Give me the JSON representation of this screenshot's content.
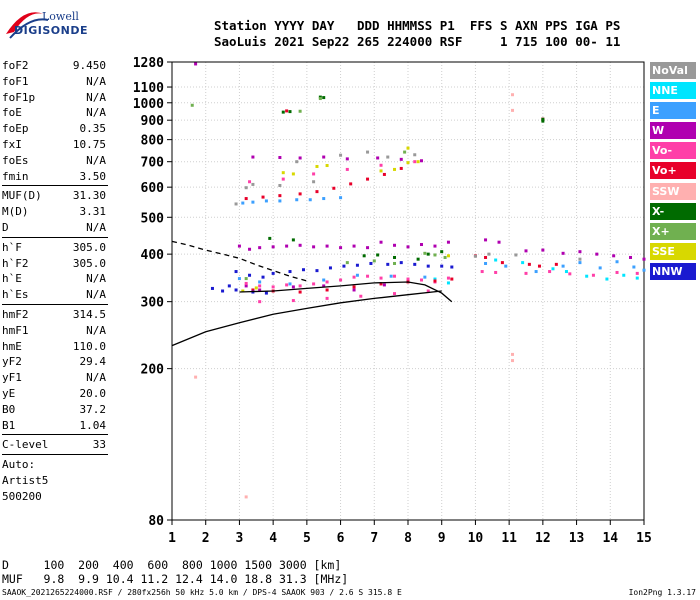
{
  "logo": {
    "line1": "Lowell",
    "line2": "DIGISONDE"
  },
  "header": {
    "line1": "Station YYYY DAY   DDD HHMMSS P1  FFS S AXN PPS IGA PS",
    "line2": "SaoLuis 2021 Sep22 265 224000 RSF     1 715 100 00- 11"
  },
  "params_groups": [
    [
      [
        "foF2",
        "9.450"
      ],
      [
        "foF1",
        "N/A"
      ],
      [
        "foF1p",
        "N/A"
      ],
      [
        "foE",
        "N/A"
      ],
      [
        "foEp",
        "0.35"
      ],
      [
        "fxI",
        "10.75"
      ],
      [
        "foEs",
        "N/A"
      ],
      [
        "fmin",
        "3.50"
      ]
    ],
    [
      [
        "MUF(D)",
        "31.30"
      ],
      [
        "M(D)",
        "3.31"
      ],
      [
        "D",
        "N/A"
      ]
    ],
    [
      [
        "h`F",
        "305.0"
      ],
      [
        "h`F2",
        "305.0"
      ],
      [
        "h`E",
        "N/A"
      ],
      [
        "h`Es",
        "N/A"
      ]
    ],
    [
      [
        "hmF2",
        "314.5"
      ],
      [
        "hmF1",
        "N/A"
      ],
      [
        "hmE",
        "110.0"
      ],
      [
        "yF2",
        "29.4"
      ],
      [
        "yF1",
        "N/A"
      ],
      [
        "yE",
        "20.0"
      ],
      [
        "B0",
        "37.2"
      ],
      [
        "B1",
        "1.04"
      ]
    ],
    [
      [
        "C-level",
        "33"
      ]
    ]
  ],
  "autoscale": {
    "line1": "Auto:",
    "line2": "Artist5",
    "line3": "500200"
  },
  "legend": [
    {
      "label": "NoVal",
      "bg": "#999999",
      "fg": "#ffffff"
    },
    {
      "label": "NNE",
      "bg": "#00e5ff",
      "fg": "#ffffff"
    },
    {
      "label": "E",
      "bg": "#3ca0ff",
      "fg": "#ffffff"
    },
    {
      "label": "W",
      "bg": "#b000b0",
      "fg": "#ffffff"
    },
    {
      "label": "Vo-",
      "bg": "#ff3fa8",
      "fg": "#ffffff"
    },
    {
      "label": "Vo+",
      "bg": "#e8002a",
      "fg": "#ffffff"
    },
    {
      "label": "SSW",
      "bg": "#ffb0b0",
      "fg": "#ffffff"
    },
    {
      "label": "X-",
      "bg": "#006b00",
      "fg": "#ffffff"
    },
    {
      "label": "X+",
      "bg": "#70b050",
      "fg": "#ffffff"
    },
    {
      "label": "SSE",
      "bg": "#d8d800",
      "fg": "#ffffff"
    },
    {
      "label": "NNW",
      "bg": "#1a1ad0",
      "fg": "#ffffff"
    }
  ],
  "bottom": {
    "line1": "D     100  200  400  600  800 1000 1500 3000 [km]",
    "line2": "MUF   9.8  9.9 10.4 11.2 12.4 14.0 18.8 31.3 [MHz]"
  },
  "footer": {
    "left": "SAAOK_2021265224000.RSF / 280fx256h 50 kHz 5.0 km / DPS-4 SAAOK 903 / 2.6 S 315.8 E",
    "right": "Ion2Png 1.3.17"
  },
  "chart_data": {
    "type": "scatter",
    "title": "",
    "xlabel": "",
    "ylabel": "",
    "xlim": [
      1,
      15
    ],
    "ylim": [
      80,
      1280
    ],
    "y_scale": "log",
    "x_ticks": [
      1,
      2,
      3,
      4,
      5,
      6,
      7,
      8,
      9,
      10,
      11,
      12,
      13,
      14,
      15
    ],
    "y_ticks": [
      80,
      200,
      300,
      400,
      500,
      600,
      700,
      800,
      900,
      1000,
      1100,
      1280
    ],
    "series": [
      {
        "name": "E",
        "color": "#3ca0ff",
        "points": [
          [
            3.1,
            545
          ],
          [
            3.4,
            548
          ],
          [
            3.8,
            552
          ],
          [
            4.2,
            552
          ],
          [
            4.7,
            556
          ],
          [
            5.1,
            556
          ],
          [
            5.5,
            560
          ],
          [
            6.0,
            563
          ],
          [
            3.0,
            345
          ],
          [
            3.6,
            338
          ],
          [
            4.5,
            334
          ],
          [
            5.5,
            342
          ],
          [
            6.5,
            352
          ],
          [
            7.5,
            350
          ],
          [
            8.5,
            348
          ],
          [
            10.3,
            378
          ],
          [
            10.9,
            372
          ],
          [
            11.8,
            360
          ],
          [
            12.6,
            372
          ],
          [
            13.1,
            380
          ],
          [
            13.7,
            368
          ],
          [
            14.2,
            382
          ],
          [
            14.7,
            370
          ],
          [
            15.0,
            363
          ]
        ]
      },
      {
        "name": "NNE",
        "color": "#00e5ff",
        "points": [
          [
            12.3,
            366
          ],
          [
            12.7,
            360
          ],
          [
            13.3,
            350
          ],
          [
            13.9,
            344
          ],
          [
            14.4,
            352
          ],
          [
            14.8,
            346
          ],
          [
            10.6,
            386
          ],
          [
            11.4,
            380
          ],
          [
            9.2,
            336
          ],
          [
            8.8,
            344
          ]
        ]
      },
      {
        "name": "W",
        "color": "#b000b0",
        "points": [
          [
            3.0,
            420
          ],
          [
            3.3,
            412
          ],
          [
            3.6,
            416
          ],
          [
            4.0,
            418
          ],
          [
            4.4,
            420
          ],
          [
            4.8,
            422
          ],
          [
            5.2,
            418
          ],
          [
            5.6,
            420
          ],
          [
            6.0,
            416
          ],
          [
            6.4,
            420
          ],
          [
            6.8,
            416
          ],
          [
            7.2,
            430
          ],
          [
            7.6,
            422
          ],
          [
            8.0,
            418
          ],
          [
            8.4,
            424
          ],
          [
            8.8,
            420
          ],
          [
            9.2,
            430
          ],
          [
            3.4,
            720
          ],
          [
            4.2,
            718
          ],
          [
            4.8,
            716
          ],
          [
            5.5,
            720
          ],
          [
            6.2,
            712
          ],
          [
            7.1,
            716
          ],
          [
            7.8,
            710
          ],
          [
            8.4,
            704
          ],
          [
            10.3,
            436
          ],
          [
            10.7,
            430
          ],
          [
            11.5,
            408
          ],
          [
            12.0,
            410
          ],
          [
            12.6,
            402
          ],
          [
            13.1,
            406
          ],
          [
            13.6,
            400
          ],
          [
            14.1,
            396
          ],
          [
            14.6,
            392
          ],
          [
            15.0,
            388
          ],
          [
            1.7,
            1265
          ],
          [
            3.2,
            330
          ],
          [
            3.6,
            322
          ],
          [
            4.6,
            328
          ],
          [
            5.5,
            330
          ],
          [
            6.4,
            322
          ],
          [
            7.3,
            332
          ]
        ]
      },
      {
        "name": "Vo-",
        "color": "#ff3fa8",
        "points": [
          [
            3.2,
            335
          ],
          [
            3.6,
            330
          ],
          [
            4.0,
            328
          ],
          [
            4.4,
            332
          ],
          [
            4.8,
            330
          ],
          [
            5.2,
            334
          ],
          [
            5.6,
            338
          ],
          [
            6.0,
            342
          ],
          [
            6.4,
            348
          ],
          [
            6.8,
            350
          ],
          [
            7.2,
            346
          ],
          [
            7.6,
            350
          ],
          [
            8.0,
            344
          ],
          [
            8.4,
            342
          ],
          [
            8.8,
            338
          ],
          [
            9.2,
            346
          ],
          [
            10.2,
            360
          ],
          [
            10.6,
            358
          ],
          [
            11.5,
            356
          ],
          [
            12.2,
            360
          ],
          [
            12.8,
            355
          ],
          [
            13.5,
            352
          ],
          [
            14.2,
            358
          ],
          [
            14.8,
            356
          ],
          [
            3.6,
            300
          ],
          [
            4.6,
            302
          ],
          [
            5.6,
            306
          ],
          [
            6.6,
            310
          ],
          [
            7.6,
            315
          ],
          [
            8.6,
            320
          ],
          [
            3.3,
            620
          ],
          [
            4.3,
            630
          ],
          [
            5.2,
            650
          ],
          [
            6.2,
            668
          ],
          [
            7.2,
            685
          ],
          [
            8.2,
            700
          ]
        ]
      },
      {
        "name": "Vo+",
        "color": "#e8002a",
        "points": [
          [
            3.2,
            560
          ],
          [
            3.7,
            565
          ],
          [
            4.2,
            570
          ],
          [
            4.8,
            576
          ],
          [
            5.3,
            584
          ],
          [
            5.8,
            596
          ],
          [
            6.3,
            612
          ],
          [
            6.8,
            630
          ],
          [
            7.3,
            648
          ],
          [
            7.8,
            672
          ],
          [
            3.4,
            322
          ],
          [
            4.0,
            320
          ],
          [
            4.8,
            318
          ],
          [
            5.6,
            322
          ],
          [
            6.4,
            328
          ],
          [
            7.2,
            334
          ],
          [
            8.0,
            338
          ],
          [
            8.8,
            340
          ],
          [
            9.3,
            344
          ],
          [
            10.0,
            396
          ],
          [
            10.3,
            392
          ],
          [
            10.8,
            380
          ],
          [
            11.6,
            376
          ],
          [
            11.9,
            372
          ],
          [
            12.4,
            376
          ],
          [
            4.4,
            952
          ],
          [
            12.0,
            906
          ]
        ]
      },
      {
        "name": "SSW",
        "color": "#ffb0b0",
        "points": [
          [
            11.1,
            1050
          ],
          [
            11.1,
            955
          ],
          [
            11.1,
            218
          ],
          [
            11.1,
            210
          ],
          [
            1.7,
            190
          ],
          [
            3.2,
            92
          ]
        ]
      },
      {
        "name": "X-",
        "color": "#006b00",
        "points": [
          [
            5.4,
            1035
          ],
          [
            5.5,
            1032
          ],
          [
            12.0,
            905
          ],
          [
            12.0,
            895
          ],
          [
            4.3,
            945
          ],
          [
            4.5,
            948
          ],
          [
            6.7,
            396
          ],
          [
            7.1,
            398
          ],
          [
            7.6,
            392
          ],
          [
            8.3,
            388
          ],
          [
            8.6,
            400
          ],
          [
            9.0,
            406
          ],
          [
            3.9,
            440
          ],
          [
            4.6,
            436
          ]
        ]
      },
      {
        "name": "X+",
        "color": "#70b050",
        "points": [
          [
            1.6,
            985
          ],
          [
            5.4,
            1026
          ],
          [
            4.8,
            950
          ],
          [
            7.9,
            742
          ],
          [
            8.5,
            402
          ],
          [
            8.8,
            398
          ],
          [
            9.1,
            392
          ],
          [
            6.2,
            380
          ],
          [
            7.0,
            384
          ],
          [
            7.6,
            378
          ],
          [
            3.2,
            345
          ]
        ]
      },
      {
        "name": "SSE",
        "color": "#d8d800",
        "points": [
          [
            4.3,
            655
          ],
          [
            4.6,
            650
          ],
          [
            5.3,
            680
          ],
          [
            5.6,
            684
          ],
          [
            7.2,
            662
          ],
          [
            7.6,
            668
          ],
          [
            8.0,
            696
          ],
          [
            8.3,
            700
          ],
          [
            8.0,
            760
          ],
          [
            3.1,
            320
          ],
          [
            3.5,
            326
          ],
          [
            9.2,
            396
          ]
        ]
      },
      {
        "name": "NNW",
        "color": "#1a1ad0",
        "points": [
          [
            2.9,
            360
          ],
          [
            3.3,
            352
          ],
          [
            3.7,
            348
          ],
          [
            4.0,
            356
          ],
          [
            4.5,
            360
          ],
          [
            4.9,
            364
          ],
          [
            5.3,
            362
          ],
          [
            5.7,
            368
          ],
          [
            6.1,
            372
          ],
          [
            6.5,
            374
          ],
          [
            6.9,
            378
          ],
          [
            7.4,
            376
          ],
          [
            7.8,
            380
          ],
          [
            8.2,
            376
          ],
          [
            8.6,
            372
          ],
          [
            9.0,
            372
          ],
          [
            9.3,
            370
          ],
          [
            2.9,
            322
          ],
          [
            3.4,
            318
          ],
          [
            3.8,
            316
          ],
          [
            2.7,
            330
          ],
          [
            2.5,
            320
          ],
          [
            2.2,
            325
          ]
        ]
      },
      {
        "name": "NoVal",
        "color": "#999999",
        "points": [
          [
            2.9,
            542
          ],
          [
            3.2,
            598
          ],
          [
            3.4,
            610
          ],
          [
            4.2,
            606
          ],
          [
            4.7,
            700
          ],
          [
            5.2,
            620
          ],
          [
            6.0,
            728
          ],
          [
            6.8,
            742
          ],
          [
            7.4,
            720
          ],
          [
            8.2,
            730
          ],
          [
            10.0,
            395
          ],
          [
            10.4,
            400
          ],
          [
            11.2,
            398
          ],
          [
            13.1,
            388
          ]
        ]
      }
    ],
    "lines": [
      {
        "style": "solid",
        "color": "#000000",
        "points": [
          [
            1,
            230
          ],
          [
            2,
            250
          ],
          [
            3,
            264
          ],
          [
            4,
            278
          ],
          [
            5,
            288
          ],
          [
            6,
            298
          ],
          [
            7,
            306
          ],
          [
            8,
            313
          ],
          [
            9,
            320
          ]
        ]
      },
      {
        "style": "solid",
        "color": "#000000",
        "points": [
          [
            3,
            318
          ],
          [
            4,
            320
          ],
          [
            5,
            325
          ],
          [
            6,
            330
          ],
          [
            7,
            336
          ],
          [
            8,
            338
          ],
          [
            8.5,
            332
          ],
          [
            9,
            316
          ],
          [
            9.3,
            300
          ]
        ]
      },
      {
        "style": "dashed",
        "color": "#000000",
        "points": [
          [
            1,
            432
          ],
          [
            1.5,
            422
          ],
          [
            2,
            410
          ],
          [
            2.5,
            400
          ],
          [
            3,
            390
          ],
          [
            3.5,
            375
          ],
          [
            4,
            362
          ],
          [
            4.5,
            350
          ],
          [
            5,
            340
          ]
        ]
      }
    ]
  }
}
